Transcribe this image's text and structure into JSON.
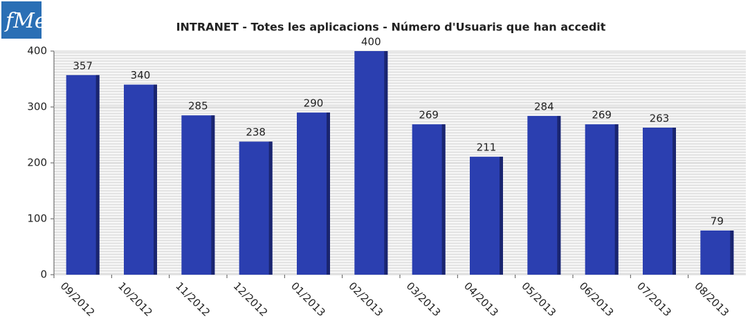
{
  "logo": "fMe",
  "chart_data": {
    "type": "bar",
    "title": "INTRANET - Totes les aplicacions  - Número d'Usuaris que han accedit",
    "categories": [
      "09/2012",
      "10/2012",
      "11/2012",
      "12/2012",
      "01/2013",
      "02/2013",
      "03/2013",
      "04/2013",
      "05/2013",
      "06/2013",
      "07/2013",
      "08/2013"
    ],
    "values": [
      357,
      340,
      285,
      238,
      290,
      400,
      269,
      211,
      284,
      269,
      263,
      79
    ],
    "color": "#2b3fb0",
    "ylim": [
      0,
      400
    ],
    "yticks": [
      0,
      100,
      200,
      300,
      400
    ],
    "grid": true
  }
}
